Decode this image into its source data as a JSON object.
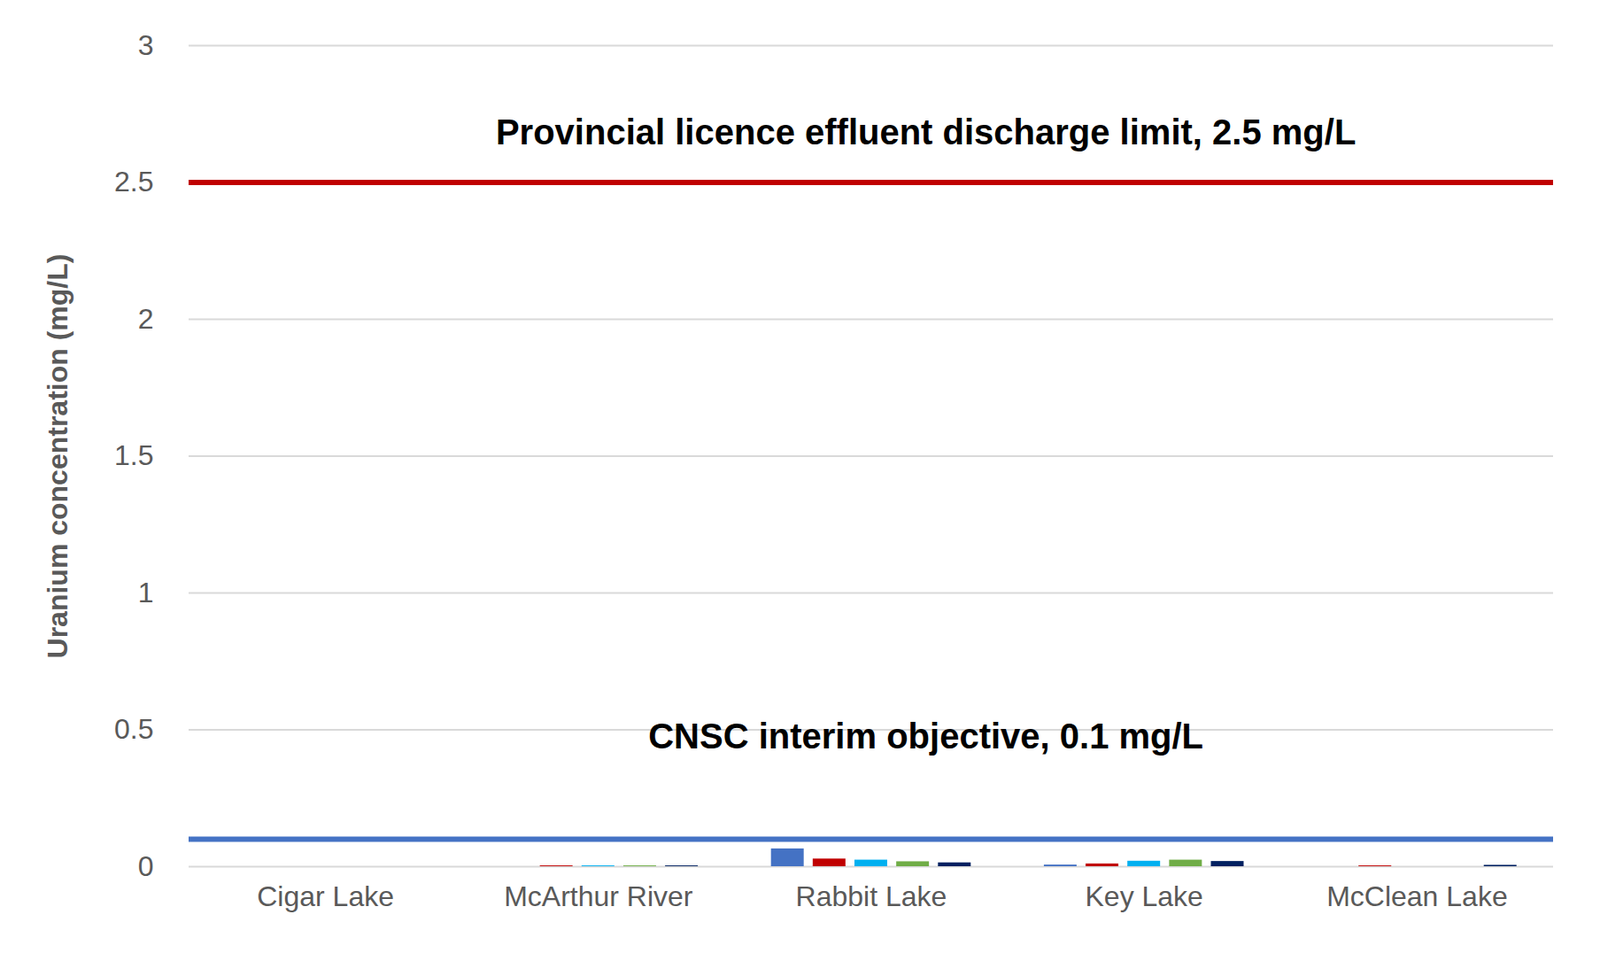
{
  "chart_data": {
    "type": "bar",
    "y_label": "Uranium concentration (mg/L)",
    "categories": [
      "Cigar Lake",
      "McArthur River",
      "Rabbit Lake",
      "Key Lake",
      "McClean Lake"
    ],
    "series": [
      {
        "color": "#4472c4",
        "values": [
          0,
          0,
          0.065,
          0.006,
          0
        ]
      },
      {
        "color": "#c00000",
        "values": [
          0,
          0.003,
          0.028,
          0.01,
          0.003
        ]
      },
      {
        "color": "#00b0f0",
        "values": [
          0,
          0.003,
          0.024,
          0.02,
          0
        ]
      },
      {
        "color": "#70ad47",
        "values": [
          0,
          0.003,
          0.018,
          0.024,
          0
        ]
      },
      {
        "color": "#002060",
        "values": [
          0,
          0.003,
          0.014,
          0.019,
          0.005
        ]
      }
    ],
    "ylim": [
      0,
      3
    ],
    "yticks": [
      0,
      0.5,
      1,
      1.5,
      2,
      2.5,
      3
    ],
    "grid": true,
    "reference_lines": [
      {
        "value": 2.5,
        "label": "Provincial licence effluent discharge limit, 2.5 mg/L",
        "color": "#c00000"
      },
      {
        "value": 0.1,
        "label": "CNSC interim objective, 0.1 mg/L",
        "color": "#4472c4"
      }
    ]
  }
}
